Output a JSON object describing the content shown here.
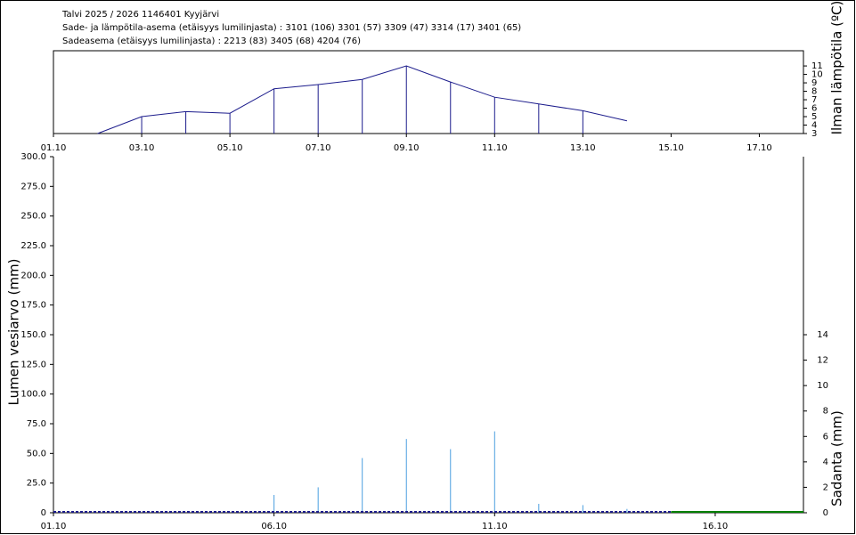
{
  "header": {
    "lines": [
      "Talvi 2025 / 2026 1146401 Kyyjärvi",
      "Sade- ja lämpötila-asema (etäisyys lumilinjasta) :  3101 (106) 3301 (57) 3309 (47) 3314 (17) 3401 (65)",
      "Sadeasema (etäisyys lumilinjasta) :  2213 (83) 3405 (68) 4204 (76)"
    ]
  },
  "chart_data": [
    {
      "type": "line",
      "y_label": "Ilman lämpötila (ºC)",
      "x": [
        "02.10",
        "03.10",
        "04.10",
        "05.10",
        "06.10",
        "07.10",
        "08.10",
        "09.10",
        "10.10",
        "11.10",
        "12.10",
        "13.10",
        "14.10"
      ],
      "series": [
        {
          "color": "#1c1c8c",
          "values": [
            3.0,
            5.0,
            5.6,
            5.4,
            8.3,
            8.8,
            9.4,
            11.0,
            9.1,
            7.3,
            6.5,
            5.7,
            4.5
          ]
        }
      ],
      "xlim": [
        "01.10",
        "18.10"
      ],
      "xticks": [
        "01.10",
        "03.10",
        "05.10",
        "07.10",
        "09.10",
        "11.10",
        "13.10",
        "15.10",
        "17.10"
      ],
      "ylim": [
        3,
        12.8
      ],
      "yticks": [
        3,
        4,
        5,
        6,
        7,
        8,
        9,
        10,
        11
      ]
    },
    {
      "type": "bar",
      "y_label": "Lumen vesiarvo (mm)",
      "y2_label": "Sadanta (mm)",
      "xlim": [
        "01.10",
        "18.10"
      ],
      "xticks": [
        "01.10",
        "06.10",
        "11.10",
        "16.10"
      ],
      "ylim": [
        0,
        300
      ],
      "yticks": [
        0,
        {
          "value": 25,
          "label": "25.0"
        },
        {
          "value": 50,
          "label": "50.0"
        },
        {
          "value": 75,
          "label": "75.0"
        },
        {
          "value": 100,
          "label": "100.0"
        },
        {
          "value": 125,
          "label": "125.0"
        },
        {
          "value": 150,
          "label": "150.0"
        },
        {
          "value": 175,
          "label": "175.0"
        },
        {
          "value": 200,
          "label": "200.0"
        },
        {
          "value": 225,
          "label": "225.0"
        },
        {
          "value": 250,
          "label": "250.0"
        },
        {
          "value": 275,
          "label": "275.0"
        },
        {
          "value": 300,
          "label": "300.0"
        }
      ],
      "y2lim": [
        0,
        28
      ],
      "y2ticks": [
        0,
        2,
        4,
        6,
        8,
        10,
        12,
        14
      ],
      "lines": [
        {
          "color": "#1c1c8c",
          "x": [
            "01.10",
            "15.10"
          ],
          "values": [
            0,
            0
          ]
        },
        {
          "color": "#008000",
          "x": [
            "15.10",
            "18.10"
          ],
          "values": [
            0,
            0
          ]
        }
      ],
      "bars": {
        "color": "#4a9ee0",
        "x": [
          "06.10",
          "07.10",
          "08.10",
          "09.10",
          "10.10",
          "11.10",
          "12.10",
          "13.10",
          "14.10"
        ],
        "values": [
          1.4,
          2.0,
          4.3,
          5.8,
          5.0,
          6.4,
          0.7,
          0.6,
          0.3
        ]
      }
    }
  ]
}
